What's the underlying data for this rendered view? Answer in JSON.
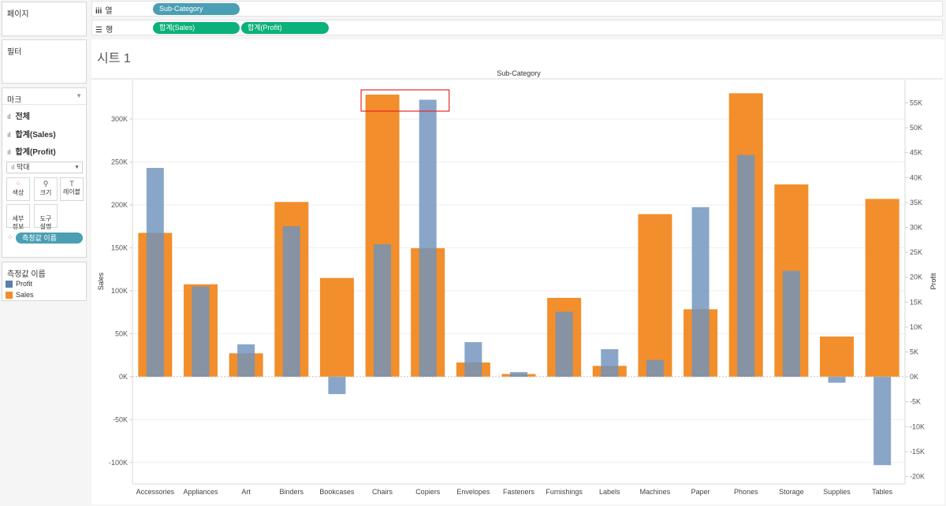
{
  "left_panel": {
    "pages_title": "페이지",
    "filters_title": "필터",
    "marks": {
      "title": "마크",
      "rows": [
        "전체",
        "합계(Sales)",
        "합계(Profit)"
      ],
      "mark_type": "막대",
      "buttons": [
        {
          "label": "색상",
          "icon": "color-dots-icon"
        },
        {
          "label": "크기",
          "icon": "size-icon"
        },
        {
          "label": "레이블",
          "icon": "label-icon"
        },
        {
          "label": "세부\n정보",
          "icon": "detail-icon"
        },
        {
          "label": "도구\n설명",
          "icon": "tooltip-icon"
        }
      ],
      "color_pill": "측정값 이름"
    },
    "legend": {
      "title": "측정값 이름",
      "items": [
        {
          "label": "Profit",
          "color": "#6f93bd"
        },
        {
          "label": "Sales",
          "color": "#f28e2b"
        }
      ]
    }
  },
  "shelves": {
    "columns_label": "열",
    "columns_pill": "Sub-Category",
    "rows_label": "행",
    "rows_pills": [
      "합계(Sales)",
      "합계(Profit)"
    ]
  },
  "sheet": {
    "title": "시트 1"
  },
  "chart_data": {
    "type": "bar",
    "title": "Sub-Category",
    "xlabel": "",
    "ylabel": "Sales",
    "y2label": "Profit",
    "categories": [
      "Accessories",
      "Appliances",
      "Art",
      "Binders",
      "Bookcases",
      "Chairs",
      "Copiers",
      "Envelopes",
      "Fasteners",
      "Furnishings",
      "Labels",
      "Machines",
      "Paper",
      "Phones",
      "Storage",
      "Supplies",
      "Tables"
    ],
    "series": [
      {
        "name": "Sales",
        "axis": "left",
        "color": "#f28e2b",
        "values": [
          167380,
          107532,
          27119,
          203413,
          114880,
          328449,
          149528,
          16476,
          3024,
          91705,
          12486,
          189239,
          78479,
          330007,
          223844,
          46674,
          206966
        ]
      },
      {
        "name": "Profit",
        "axis": "right",
        "color": "#6f93bd",
        "values": [
          41937,
          18138,
          6528,
          30222,
          -3473,
          26590,
          55618,
          6964,
          950,
          13059,
          5546,
          3385,
          34054,
          44516,
          21279,
          -1189,
          -17725
        ]
      }
    ],
    "ylim": [
      -125000,
      345000
    ],
    "y2lim": [
      -21500,
      59500
    ],
    "yticks": [
      -100000,
      -50000,
      0,
      50000,
      100000,
      150000,
      200000,
      250000,
      300000
    ],
    "yticklabels": [
      "-100K",
      "-50K",
      "0K",
      "50K",
      "100K",
      "150K",
      "200K",
      "250K",
      "300K"
    ],
    "y2ticks": [
      -20000,
      -15000,
      -10000,
      -5000,
      0,
      5000,
      10000,
      15000,
      20000,
      25000,
      30000,
      35000,
      40000,
      45000,
      50000,
      55000
    ],
    "y2ticklabels": [
      "-20K",
      "-15K",
      "-10K",
      "-5K",
      "0K",
      "5K",
      "10K",
      "15K",
      "20K",
      "25K",
      "30K",
      "35K",
      "40K",
      "45K",
      "50K",
      "55K"
    ],
    "grid": true,
    "highlight": {
      "categories": [
        "Chairs",
        "Copiers"
      ],
      "color": "#e8262b"
    }
  }
}
